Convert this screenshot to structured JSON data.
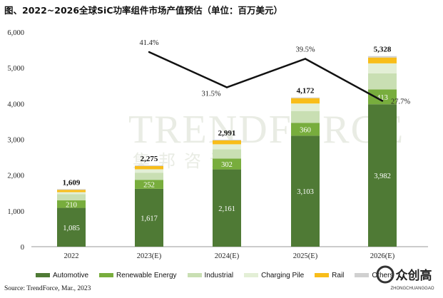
{
  "title": "图、2022~2026全球SiC功率组件市场产值预估（单位：百万美元）",
  "source": "Source: TrendForce, Mar., 2023",
  "watermark": {
    "main": "TRENDFORCE",
    "sub": "集邦咨询"
  },
  "logo": {
    "main": "众创高",
    "sub": "ZHONGCHUANGGAO"
  },
  "colors": {
    "Automotive": "#4f7a35",
    "Renewable Energy": "#78ad3d",
    "Industrial": "#c9dfb3",
    "Charging Pile": "#e3efd6",
    "Rail": "#f8bd1a",
    "Others": "#d0d0d0",
    "line": "#111111"
  },
  "chart_data": {
    "type": "bar",
    "stacked": true,
    "categories": [
      "2022",
      "2023(E)",
      "2024(E)",
      "2025(E)",
      "2026(E)"
    ],
    "series": [
      {
        "name": "Automotive",
        "values": [
          1085,
          1617,
          2161,
          3103,
          3982
        ],
        "labels": [
          "1,085",
          "1,617",
          "2,161",
          "3,103",
          "3,982"
        ]
      },
      {
        "name": "Renewable Energy",
        "values": [
          210,
          252,
          302,
          360,
          413
        ],
        "labels": [
          "210",
          "252",
          "302",
          "360",
          "413"
        ]
      },
      {
        "name": "Industrial",
        "values": [
          170,
          200,
          260,
          330,
          450
        ],
        "labels": []
      },
      {
        "name": "Charging Pile",
        "values": [
          60,
          95,
          140,
          210,
          280
        ],
        "labels": []
      },
      {
        "name": "Rail",
        "values": [
          64,
          91,
          108,
          149,
          163
        ],
        "labels": []
      },
      {
        "name": "Others",
        "values": [
          20,
          20,
          20,
          20,
          40
        ],
        "labels": []
      }
    ],
    "totals": [
      1609,
      2275,
      2991,
      4172,
      5328
    ],
    "total_labels": [
      "1,609",
      "2,275",
      "2,991",
      "4,172",
      "5,328"
    ],
    "growth_line": {
      "categories": [
        "2023(E)",
        "2024(E)",
        "2025(E)",
        "2026(E)"
      ],
      "values": [
        41.4,
        31.5,
        39.5,
        27.7
      ],
      "labels": [
        "41.4%",
        "31.5%",
        "39.5%",
        "27.7%"
      ]
    },
    "yticks": [
      "0",
      "1,000",
      "2,000",
      "3,000",
      "4,000",
      "5,000",
      "6,000"
    ],
    "ylim": [
      0,
      6000
    ],
    "legend": [
      "Automotive",
      "Renewable Energy",
      "Industrial",
      "Charging Pile",
      "Rail",
      "Others"
    ],
    "legend_placement": "bottom"
  }
}
